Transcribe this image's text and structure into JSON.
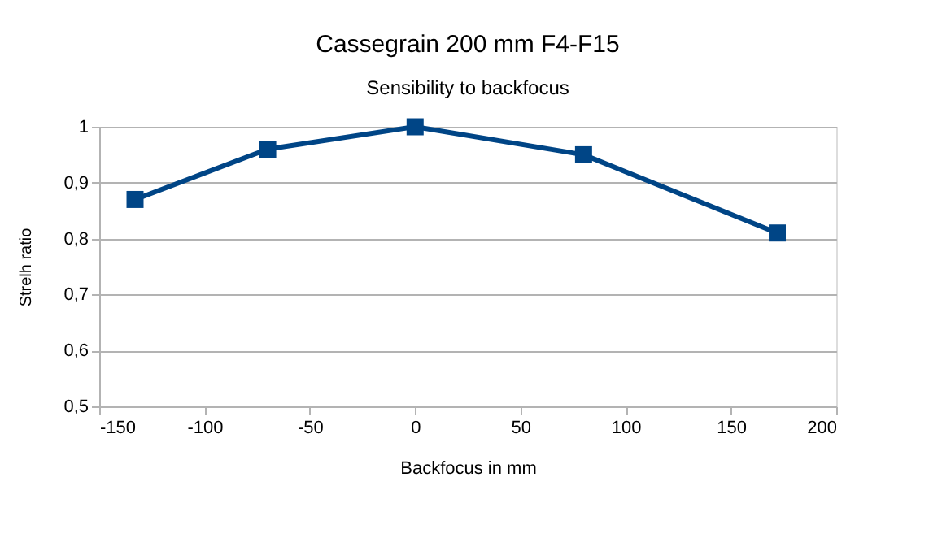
{
  "chart_data": {
    "type": "line",
    "title": "Cassegrain 200 mm F4-F15",
    "subtitle": "Sensibility to backfocus",
    "xlabel": "Backfocus in mm",
    "ylabel": "Strelh ratio",
    "x": [
      -133,
      -70,
      0,
      80,
      172
    ],
    "series": [
      {
        "color": "#004586",
        "values": [
          0.87,
          0.96,
          1.0,
          0.95,
          0.81
        ]
      }
    ],
    "xlim": [
      -150,
      200
    ],
    "xticks": [
      -150,
      -100,
      -50,
      0,
      50,
      100,
      150,
      200
    ],
    "ylim": [
      0.5,
      1.0
    ],
    "yticks": [
      {
        "value": 0.5,
        "label": "0,5"
      },
      {
        "value": 0.6,
        "label": "0,6"
      },
      {
        "value": 0.7,
        "label": "0,7"
      },
      {
        "value": 0.8,
        "label": "0,8"
      },
      {
        "value": 0.9,
        "label": "0,9"
      },
      1
    ],
    "grid": "y",
    "marker": "square",
    "line_style": "solid"
  }
}
